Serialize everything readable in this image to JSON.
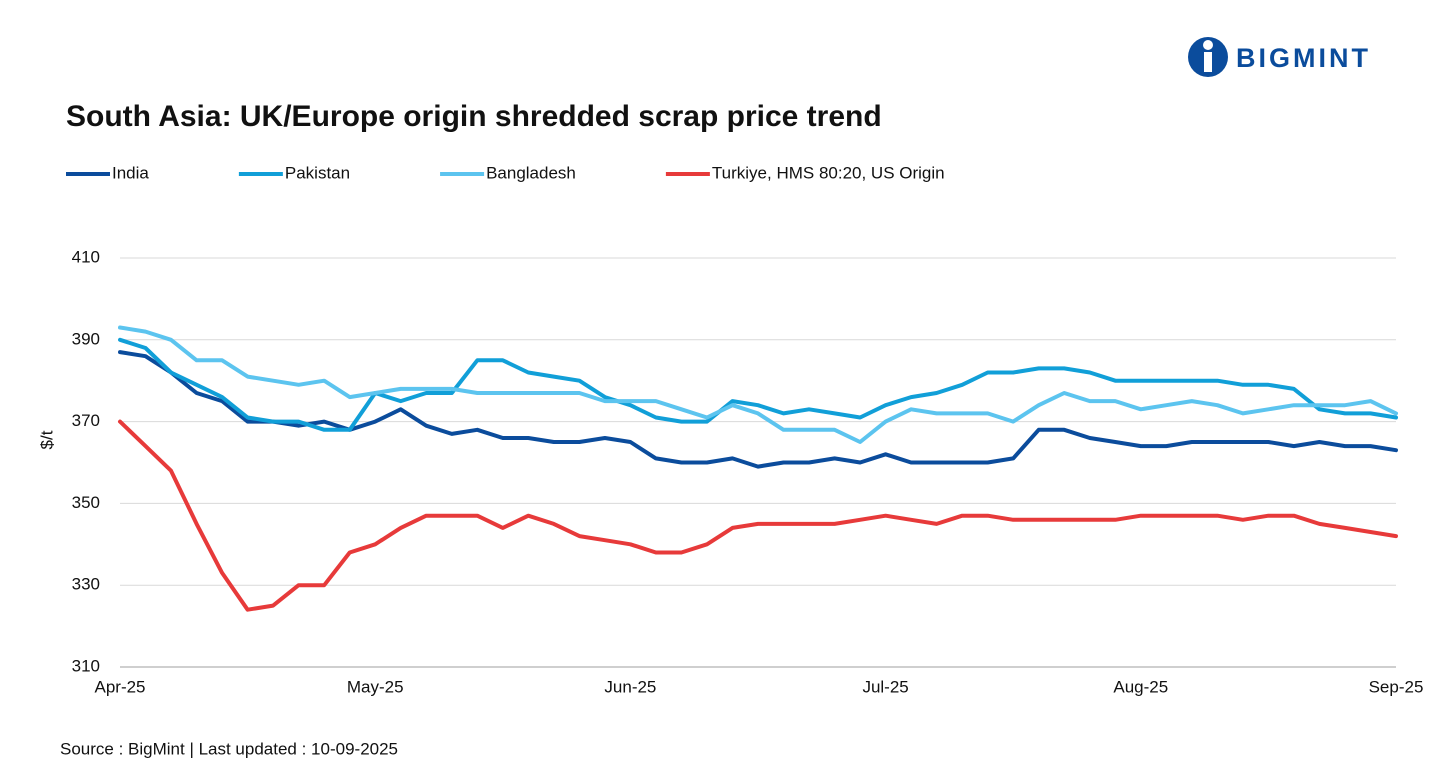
{
  "brand": "BIGMINT",
  "source": "Source : BigMint | Last updated : 10-09-2025",
  "chart_data": {
    "type": "line",
    "title": "South Asia: UK/Europe origin shredded scrap price trend",
    "y_label": "$/t",
    "x": [
      "Apr-25",
      null,
      null,
      null,
      null,
      null,
      null,
      null,
      null,
      null,
      "May-25",
      null,
      null,
      null,
      null,
      null,
      null,
      null,
      null,
      null,
      "Jun-25",
      null,
      null,
      null,
      null,
      null,
      null,
      null,
      null,
      null,
      "Jul-25",
      null,
      null,
      null,
      null,
      null,
      null,
      null,
      null,
      null,
      "Aug-25",
      null,
      null,
      null,
      null,
      null,
      null,
      null,
      null,
      null,
      "Sep-25"
    ],
    "ylim": [
      310,
      410
    ],
    "yticks": [
      310,
      330,
      350,
      370,
      390,
      410
    ],
    "grid": true,
    "legend": "top-left",
    "series": [
      {
        "name": "India",
        "color": "#0b4c9c",
        "values": [
          387,
          386,
          382,
          377,
          375,
          370,
          370,
          369,
          370,
          368,
          370,
          373,
          369,
          367,
          368,
          366,
          366,
          365,
          365,
          366,
          365,
          361,
          360,
          360,
          361,
          359,
          360,
          360,
          361,
          360,
          362,
          360,
          360,
          360,
          360,
          361,
          368,
          368,
          366,
          365,
          364,
          364,
          365,
          365,
          365,
          365,
          364,
          365,
          364,
          364,
          363
        ]
      },
      {
        "name": "Pakistan",
        "color": "#119fd8",
        "values": [
          390,
          388,
          382,
          379,
          376,
          371,
          370,
          370,
          368,
          368,
          377,
          375,
          377,
          377,
          385,
          385,
          382,
          381,
          380,
          376,
          374,
          371,
          370,
          370,
          375,
          374,
          372,
          373,
          372,
          371,
          374,
          376,
          377,
          379,
          382,
          382,
          383,
          383,
          382,
          380,
          380,
          380,
          380,
          380,
          379,
          379,
          378,
          373,
          372,
          372,
          371
        ]
      },
      {
        "name": "Bangladesh",
        "color": "#5cc4ef",
        "values": [
          393,
          392,
          390,
          385,
          385,
          381,
          380,
          379,
          380,
          376,
          377,
          378,
          378,
          378,
          377,
          377,
          377,
          377,
          377,
          375,
          375,
          375,
          373,
          371,
          374,
          372,
          368,
          368,
          368,
          365,
          370,
          373,
          372,
          372,
          372,
          370,
          374,
          377,
          375,
          375,
          373,
          374,
          375,
          374,
          372,
          373,
          374,
          374,
          374,
          375,
          372
        ]
      },
      {
        "name": "Turkiye, HMS 80:20, US Origin",
        "color": "#e73a3a",
        "values": [
          370,
          364,
          358,
          345,
          333,
          324,
          325,
          330,
          330,
          338,
          340,
          344,
          347,
          347,
          347,
          344,
          347,
          345,
          342,
          341,
          340,
          338,
          338,
          340,
          344,
          345,
          345,
          345,
          345,
          346,
          347,
          346,
          345,
          347,
          347,
          346,
          346,
          346,
          346,
          346,
          347,
          347,
          347,
          347,
          346,
          347,
          347,
          345,
          344,
          343,
          342
        ]
      }
    ]
  }
}
